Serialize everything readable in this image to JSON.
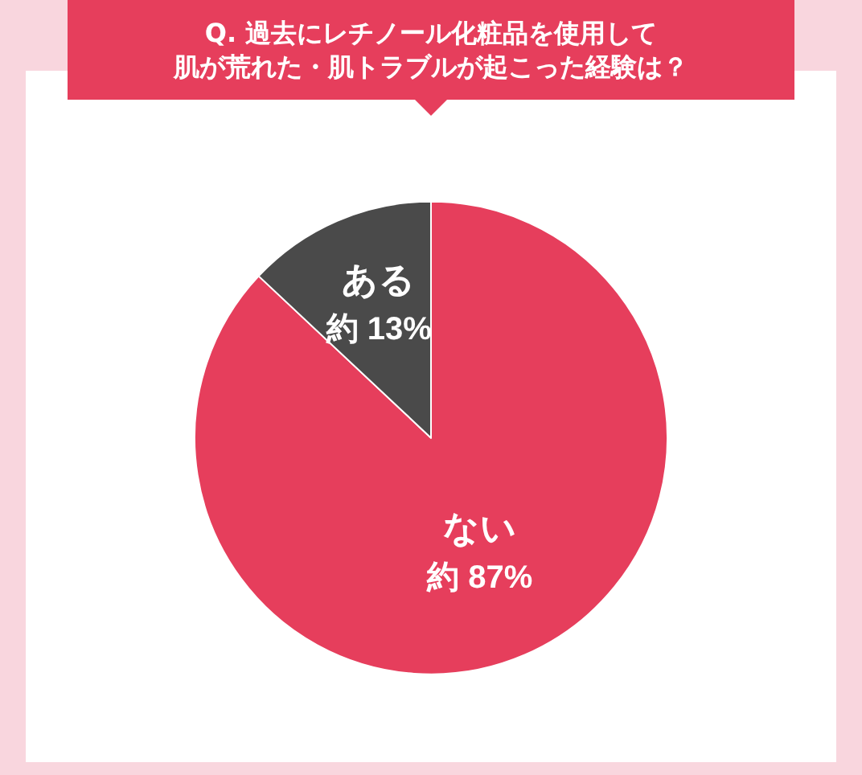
{
  "chart_data": {
    "type": "pie",
    "title": "Q. 過去にレチノール化粧品を使用して肌が荒れた・肌トラブルが起こった経験は？",
    "categories": [
      "ない",
      "ある"
    ],
    "values": [
      87,
      13
    ],
    "colors": [
      "#e63e5c",
      "#4a4a4a"
    ],
    "value_labels": [
      "約 87%",
      "約 13%"
    ],
    "legend": false
  }
}
